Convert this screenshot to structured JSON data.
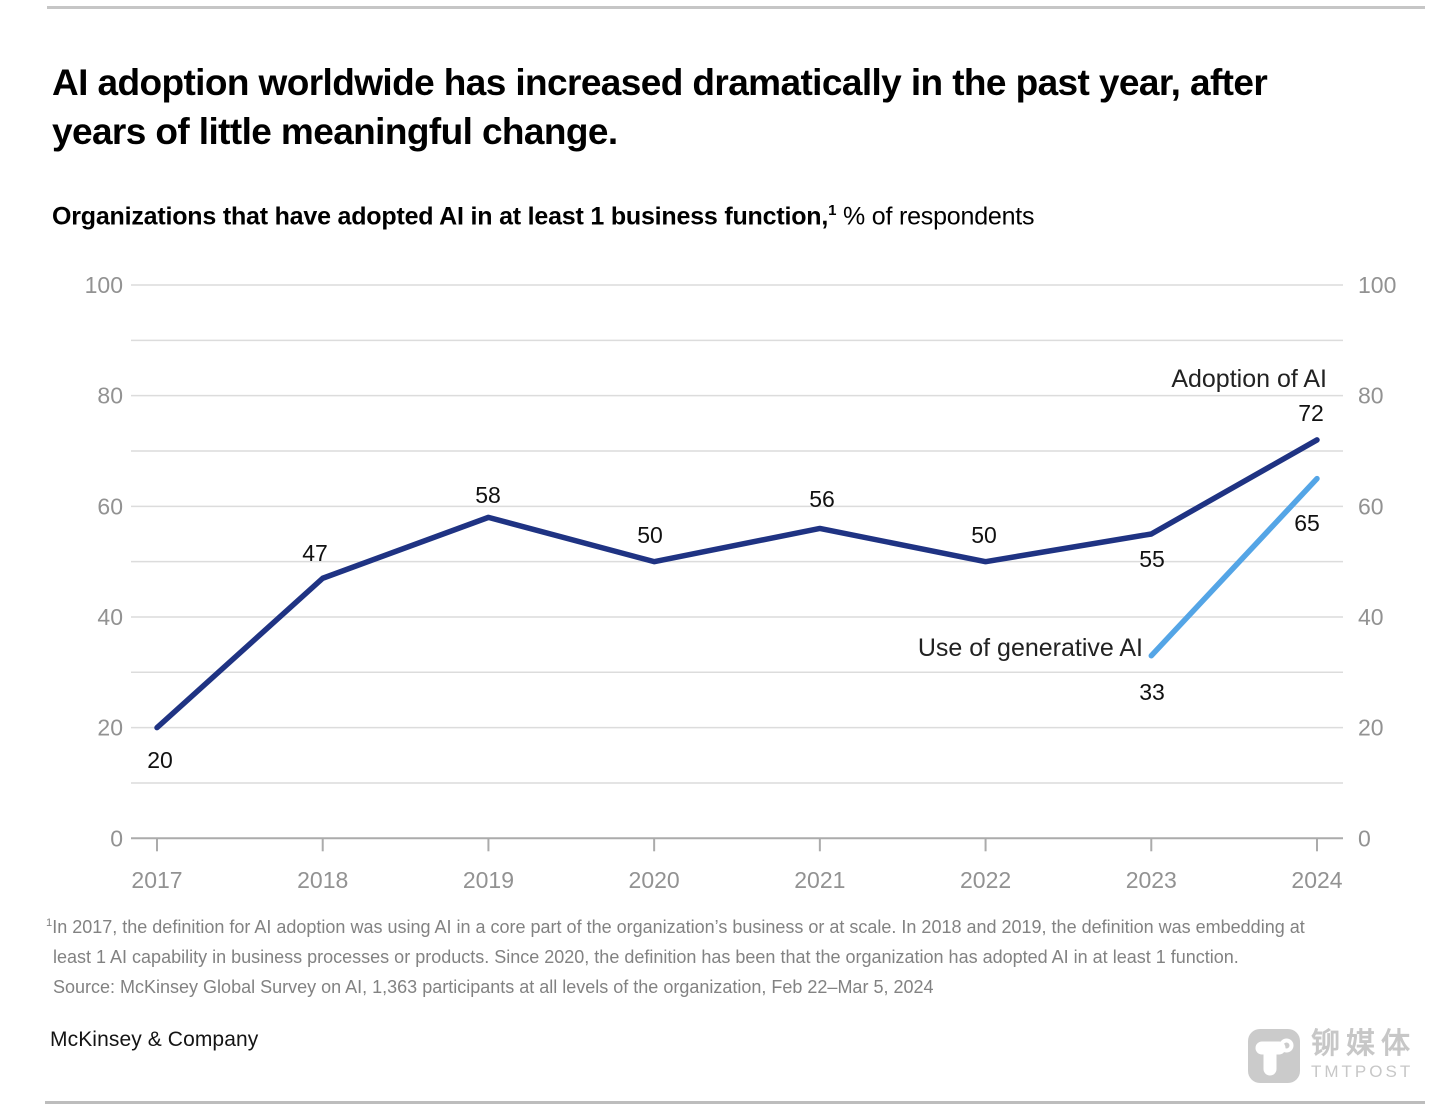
{
  "header": {
    "title_line1": "AI adoption worldwide has increased dramatically in the past year, after",
    "title_line2": "years of little meaningful change.",
    "subtitle_bold": "Organizations that have adopted AI in at least 1 business function,",
    "subtitle_sup": "1",
    "subtitle_rest": " % of respondents"
  },
  "chart_data": {
    "type": "line",
    "categories": [
      "2017",
      "2018",
      "2019",
      "2020",
      "2021",
      "2022",
      "2023",
      "2024"
    ],
    "series": [
      {
        "name": "Adoption of AI",
        "color": "#1f3383",
        "values": [
          20,
          47,
          58,
          50,
          56,
          50,
          55,
          72
        ]
      },
      {
        "name": "Use of generative AI",
        "color": "#54a5e6",
        "values": [
          null,
          null,
          null,
          null,
          null,
          null,
          33,
          65
        ]
      }
    ],
    "ylim": [
      0,
      100
    ],
    "y_gridline_step": 10,
    "y_label_step": 20,
    "y_axis_sides": "both",
    "grid": true,
    "legend_position": "inline-end-labels",
    "axis_text_color": "#929292",
    "grid_color": "#dcdcdc",
    "zero_line_color": "#ababab",
    "data_label_color": "#111111",
    "series_label_color": "#222222"
  },
  "footnote": {
    "sup": "1",
    "line1": "In 2017, the definition for AI adoption was using AI in a core part of the organization’s business or at scale. In 2018 and 2019, the definition was embedding at",
    "line2": "least 1 AI capability in business processes or products. Since 2020, the definition has been that the organization has adopted AI in at least 1 function.",
    "line3": "Source: McKinsey Global Survey on AI, 1,363 participants at all levels of the organization, Feb 22–Mar 5, 2024"
  },
  "footer": {
    "brand": "McKinsey & Company"
  },
  "watermark": {
    "cn": "铆媒体",
    "en": "TMTPOST"
  }
}
